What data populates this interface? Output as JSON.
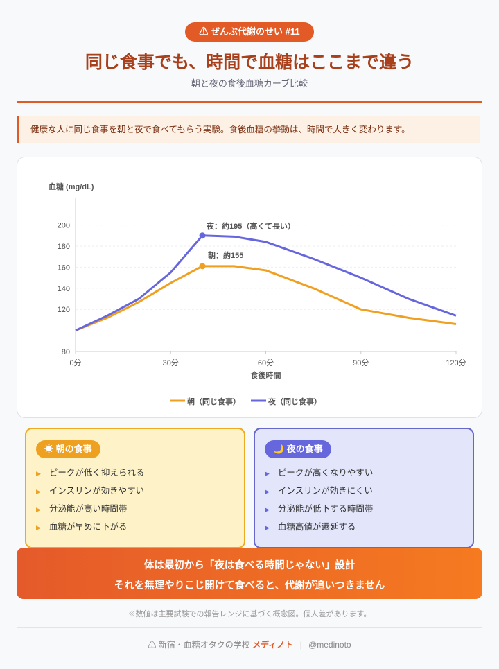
{
  "header": {
    "badge": "⚠ ぜんぶ代謝のせい #11",
    "title": "同じ食事でも、時間で血糖はここまで違う",
    "subtitle": "朝と夜の食後血糖カーブ比較"
  },
  "intro": "健康な人に同じ食事を朝と夜で食べてもらう実験。食後血糖の挙動は、時間で大きく変わります。",
  "chart_data": {
    "type": "line",
    "ylabel": "血糖 (mg/dL)",
    "xlabel": "食後時間",
    "x": [
      0,
      10,
      20,
      30,
      40,
      50,
      60,
      75,
      90,
      105,
      120
    ],
    "series": [
      {
        "name": "朝（同じ食事）",
        "color": "#f0a020",
        "values": [
          100,
          112,
          127,
          145,
          161,
          161,
          157,
          140,
          120,
          112,
          106
        ]
      },
      {
        "name": "夜（同じ食事）",
        "color": "#6666dd",
        "values": [
          100,
          114,
          130,
          155,
          190,
          189,
          184,
          168,
          150,
          130,
          114
        ]
      }
    ],
    "annotations": [
      "朝：約155",
      "夜：約195（高くて長い）"
    ],
    "xlim": [
      0,
      120
    ],
    "xticks": [
      {
        "value": 0,
        "label": "0分"
      },
      {
        "value": 30,
        "label": "30分"
      },
      {
        "value": 60,
        "label": "60分"
      },
      {
        "value": 90,
        "label": "90分"
      },
      {
        "value": 120,
        "label": "120分"
      }
    ],
    "ylim": [
      80,
      205
    ],
    "yticks": [
      80,
      120,
      140,
      160,
      180,
      200
    ],
    "grid": true,
    "legend": "bottom"
  },
  "cards": [
    {
      "title": "☀ 朝の食事",
      "items": [
        "ピークが低く抑えられる",
        "インスリンが効きやすい",
        "分泌能が高い時間帯",
        "血糖が早めに下がる"
      ]
    },
    {
      "title": "🌙 夜の食事",
      "items": [
        "ピークが高くなりやすい",
        "インスリンが効きにくい",
        "分泌能が低下する時間帯",
        "血糖高値が遷延する"
      ]
    }
  ],
  "banner": [
    "体は最初から「夜は食べる時間じゃない」設計",
    "それを無理やりこじ開けて食べると、代謝が追いつきません"
  ],
  "note": "※数値は主要試験での報告レンジに基づく概念図。個人差があります。",
  "footer": {
    "school": "⚠ 新宿・血糖オタクの学校",
    "brand": "メディノト",
    "handle": "@medinoto"
  }
}
